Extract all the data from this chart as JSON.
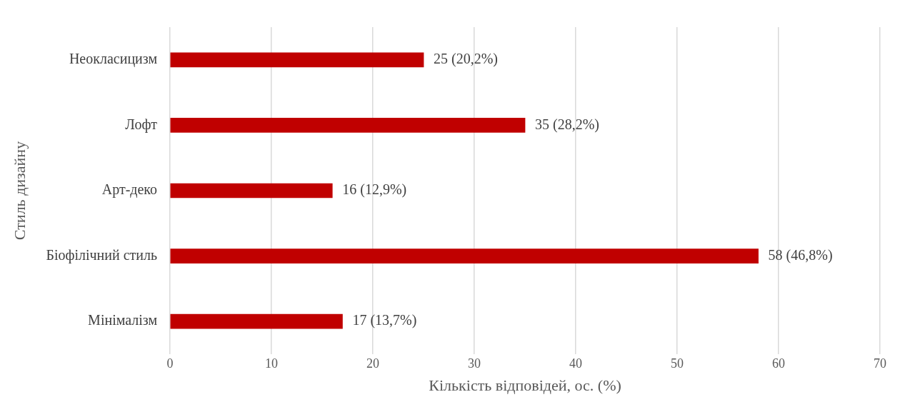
{
  "chart_data": {
    "type": "bar",
    "orientation": "horizontal",
    "xlabel": "Кількість відповідей, ос. (%)",
    "ylabel": "Стиль дизайну",
    "categories": [
      "Неокласицизм",
      "Лофт",
      "Арт-деко",
      "Біофілічний стиль",
      "Мінімалізм"
    ],
    "values": [
      25,
      35,
      16,
      58,
      17
    ],
    "value_labels": [
      "25 (20,2%)",
      "35 (28,2%)",
      "16 (12,9%)",
      "58 (46,8%)",
      "17 (13,7%)"
    ],
    "color": "#c00000",
    "xlim": [
      0,
      70
    ],
    "xticks": [
      0,
      10,
      20,
      30,
      40,
      50,
      60,
      70
    ],
    "grid": "x"
  }
}
